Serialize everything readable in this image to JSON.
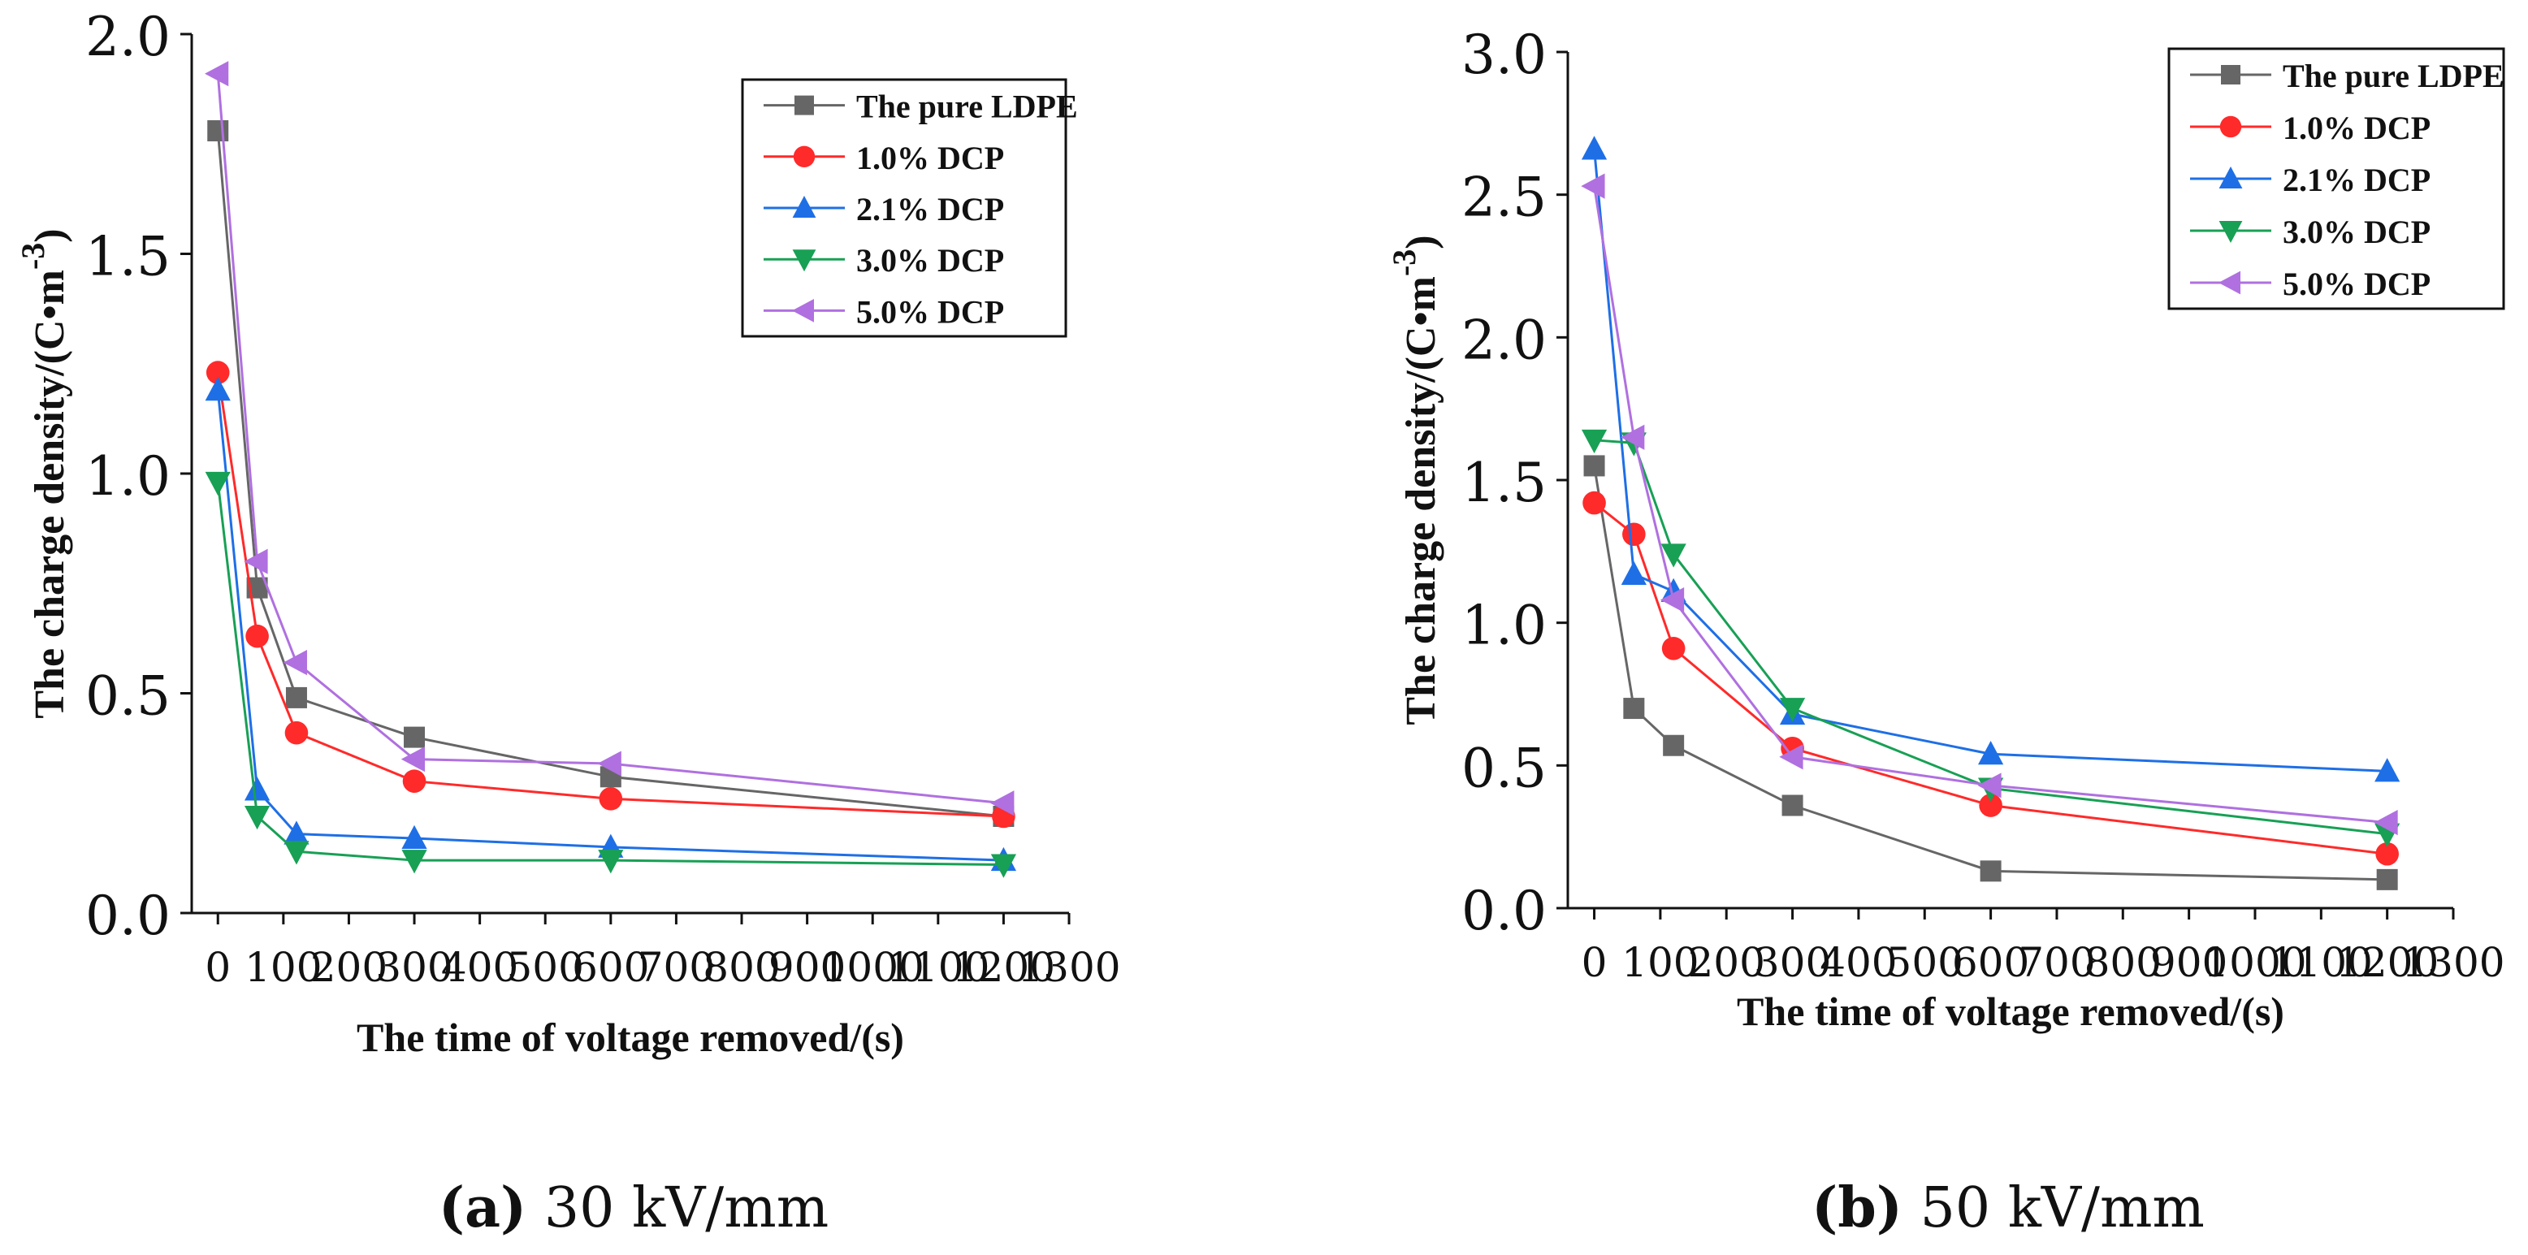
{
  "chart_data": [
    {
      "type": "line",
      "title": "",
      "xlabel": "The time of voltage removed/(s)",
      "ylabel": "The charge density/(C•m",
      "ylabel_sup": "-3",
      "ylabel_close": ")",
      "xlim": [
        -40,
        1300
      ],
      "ylim": [
        0,
        2.0
      ],
      "xticks": [
        0,
        100,
        200,
        300,
        400,
        500,
        600,
        700,
        800,
        900,
        1000,
        1100,
        1200,
        1300
      ],
      "xtick_labels": [
        "0",
        "100",
        "200",
        "300",
        "400",
        "500",
        "600",
        "700",
        "800",
        "900",
        "1000",
        "1100",
        "1200",
        "1300"
      ],
      "yticks": [
        0,
        0.5,
        1.0,
        1.5,
        2.0
      ],
      "ytick_labels": [
        "0.0",
        "0.5",
        "1.0",
        "1.5",
        "2.0"
      ],
      "x": [
        0,
        60,
        120,
        300,
        600,
        1200
      ],
      "legend_position": "top-right",
      "series": [
        {
          "name": "The pure LDPE",
          "color": "#666666",
          "marker": "square",
          "values": [
            1.78,
            0.74,
            0.49,
            0.4,
            0.31,
            0.22
          ]
        },
        {
          "name": "1.0% DCP",
          "color": "#ff2a2a",
          "marker": "circle",
          "values": [
            1.23,
            0.63,
            0.41,
            0.3,
            0.26,
            0.22
          ]
        },
        {
          "name": "2.1% DCP",
          "color": "#1e6fe6",
          "marker": "triangle-up",
          "values": [
            1.19,
            0.28,
            0.18,
            0.17,
            0.15,
            0.12
          ]
        },
        {
          "name": "3.0% DCP",
          "color": "#18a055",
          "marker": "triangle-down",
          "values": [
            0.98,
            0.22,
            0.14,
            0.12,
            0.12,
            0.11
          ]
        },
        {
          "name": "5.0% DCP",
          "color": "#b070e0",
          "marker": "triangle-left",
          "values": [
            1.91,
            0.8,
            0.57,
            0.35,
            0.34,
            0.25
          ]
        }
      ],
      "caption_letter": "(a)",
      "caption_text": " 30 kV/mm"
    },
    {
      "type": "line",
      "title": "",
      "xlabel": "The time of voltage removed/(s)",
      "ylabel": "The charge density/(C•m",
      "ylabel_sup": "-3",
      "ylabel_close": ")",
      "xlim": [
        -40,
        1300
      ],
      "ylim": [
        0,
        3.0
      ],
      "xticks": [
        0,
        100,
        200,
        300,
        400,
        500,
        600,
        700,
        800,
        900,
        1000,
        1100,
        1200,
        1300
      ],
      "xtick_labels": [
        "0",
        "100",
        "200",
        "300",
        "400",
        "500",
        "600",
        "700",
        "800",
        "900",
        "1000",
        "1100",
        "1200",
        "1300"
      ],
      "yticks": [
        0,
        0.5,
        1.0,
        1.5,
        2.0,
        2.5,
        3.0
      ],
      "ytick_labels": [
        "0.0",
        "0.5",
        "1.0",
        "1.5",
        "2.0",
        "2.5",
        "3.0"
      ],
      "x": [
        0,
        60,
        120,
        300,
        600,
        1200
      ],
      "legend_position": "top-right",
      "series": [
        {
          "name": "The pure LDPE",
          "color": "#666666",
          "marker": "square",
          "values": [
            1.55,
            0.7,
            0.57,
            0.36,
            0.13,
            0.1
          ]
        },
        {
          "name": "1.0% DCP",
          "color": "#ff2a2a",
          "marker": "circle",
          "values": [
            1.42,
            1.31,
            0.91,
            0.56,
            0.36,
            0.19
          ]
        },
        {
          "name": "2.1% DCP",
          "color": "#1e6fe6",
          "marker": "triangle-up",
          "values": [
            2.66,
            1.17,
            1.11,
            0.68,
            0.54,
            0.48
          ]
        },
        {
          "name": "3.0% DCP",
          "color": "#18a055",
          "marker": "triangle-down",
          "values": [
            1.64,
            1.63,
            1.24,
            0.7,
            0.42,
            0.26
          ]
        },
        {
          "name": "5.0% DCP",
          "color": "#b070e0",
          "marker": "triangle-left",
          "values": [
            2.53,
            1.65,
            1.08,
            0.53,
            0.43,
            0.3
          ]
        }
      ],
      "caption_letter": "(b)",
      "caption_text": " 50 kV/mm"
    }
  ]
}
